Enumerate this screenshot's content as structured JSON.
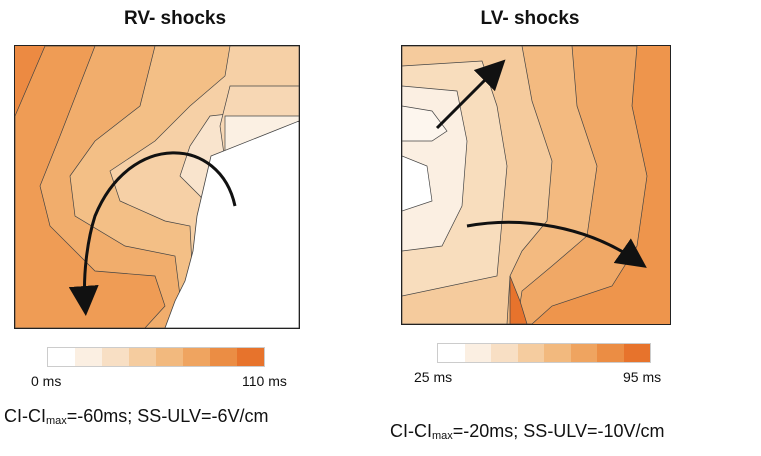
{
  "left_panel": {
    "title": "RV- shocks",
    "scale_min": "0 ms",
    "scale_max": "110 ms",
    "caption": {
      "prefix": "CI-CI",
      "sub": "max",
      "rest": "=-60ms; SS-ULV=-6V/cm"
    }
  },
  "right_panel": {
    "title": "LV- shocks",
    "scale_min": "25 ms",
    "scale_max": "95 ms",
    "caption": {
      "prefix": "CI-CI",
      "sub": "max",
      "rest": "=-20ms; SS-ULV=-10V/cm"
    }
  },
  "colors": {
    "scale": [
      "#ffffff",
      "#fbefe2",
      "#f8dfc4",
      "#f5cc9f",
      "#f2b97e",
      "#efa460",
      "#eb8d44",
      "#e7732c"
    ]
  }
}
